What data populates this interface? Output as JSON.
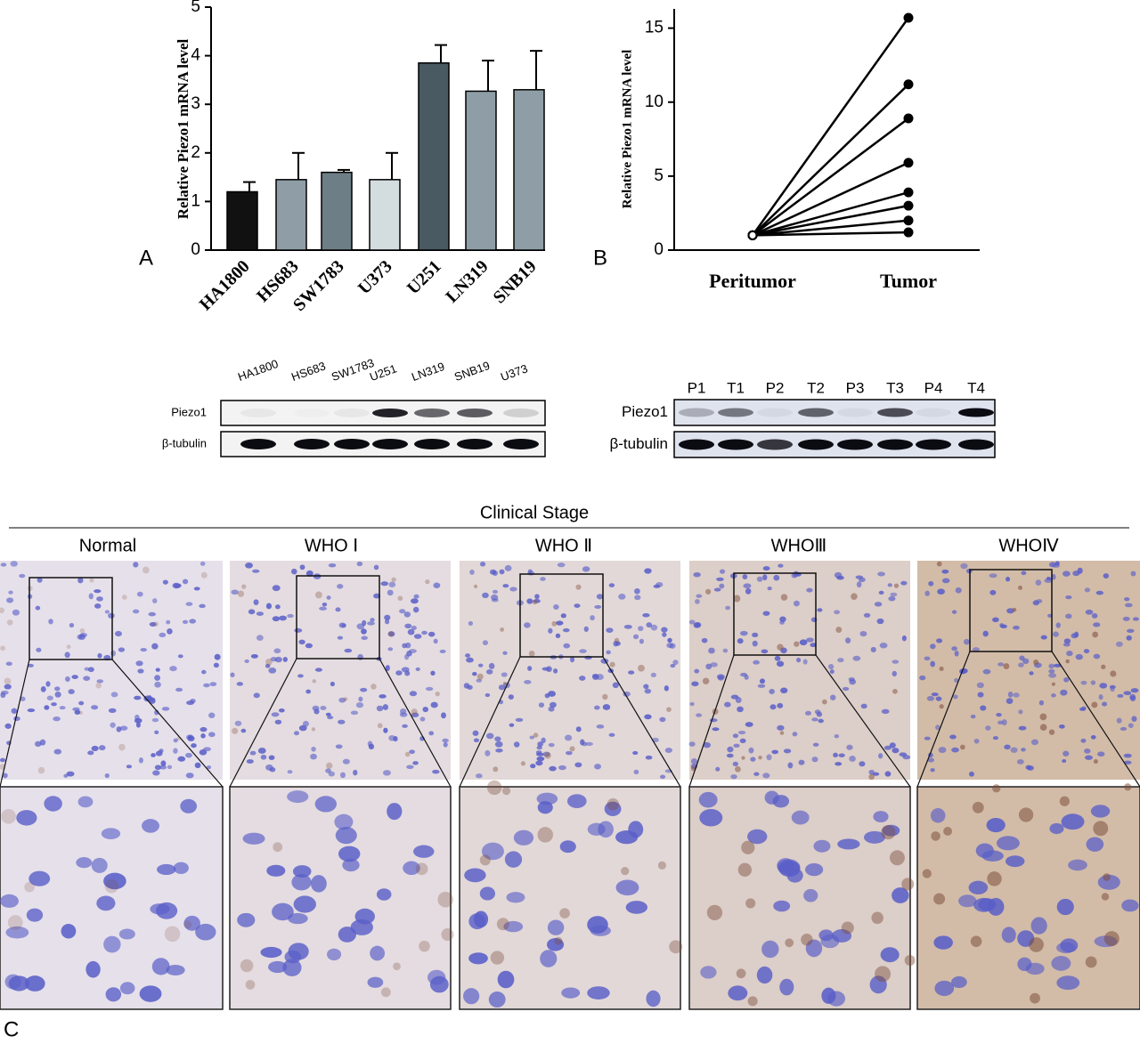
{
  "chart_data": [
    {
      "type": "bar",
      "label": "A",
      "y_label": "Relative Piezo1 mRNA level",
      "categories": [
        "HA1800",
        "HS683",
        "SW1783",
        "U373",
        "U251",
        "LN319",
        "SNB19"
      ],
      "values": [
        1.2,
        1.45,
        1.6,
        1.45,
        3.85,
        3.27,
        3.3
      ],
      "errors": [
        0.2,
        0.55,
        0.05,
        0.55,
        0.37,
        0.63,
        0.8
      ],
      "colors": [
        "#111111",
        "#8f9ea6",
        "#6e7e86",
        "#d3dcdf",
        "#4a5a62",
        "#8f9ea6",
        "#8f9ea6"
      ],
      "ylim": [
        0,
        5
      ],
      "yticks": [
        0,
        1,
        2,
        3,
        4,
        5
      ]
    },
    {
      "type": "line",
      "label": "B",
      "y_label": "Relative Piezo1 mRNA level",
      "categories": [
        "Peritumor",
        "Tumor"
      ],
      "color": "#000000",
      "series": [
        {
          "values": [
            1,
            15.7
          ]
        },
        {
          "values": [
            1,
            11.2
          ]
        },
        {
          "values": [
            1,
            8.9
          ]
        },
        {
          "values": [
            1,
            5.9
          ]
        },
        {
          "values": [
            1,
            3.9
          ]
        },
        {
          "values": [
            1,
            3.0
          ]
        },
        {
          "values": [
            1,
            2.0
          ]
        },
        {
          "values": [
            1,
            1.2
          ]
        }
      ],
      "ylim": [
        0,
        16.3
      ],
      "yticks": [
        0,
        5,
        10,
        15
      ]
    }
  ],
  "blots": [
    {
      "lanes": [
        "HA1800",
        "HS683",
        "SW1783",
        "U251",
        "LN319",
        "SNB19",
        "U373"
      ],
      "rows": [
        "Piezo1",
        "β-tubulin"
      ]
    },
    {
      "lanes": [
        "P1",
        "T1",
        "P2",
        "T2",
        "P3",
        "T3",
        "P4",
        "T4"
      ],
      "rows": [
        "Piezo1",
        "β-tubulin"
      ]
    }
  ],
  "ihc": {
    "label": "C",
    "title": "Clinical Stage",
    "stages": [
      "Normal",
      "WHO Ⅰ",
      "WHO Ⅱ",
      "WHOⅢ",
      "WHOⅣ"
    ]
  }
}
